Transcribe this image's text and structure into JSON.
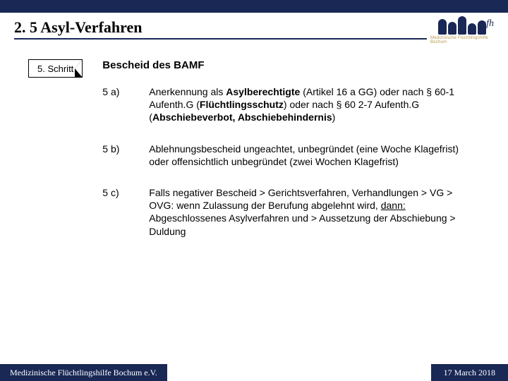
{
  "colors": {
    "brand": "#1a2855",
    "gold": "#b8974a",
    "bg": "#ffffff",
    "text": "#000000"
  },
  "title": "2. 5 Asyl-Verfahren",
  "logo": {
    "mfh": "mfh",
    "subtitle": "Medizinische Flüchtlingshilfe Bochum"
  },
  "step": {
    "label": "5. Schritt"
  },
  "heading": "Bescheid des BAMF",
  "items": [
    {
      "label": "5 a)",
      "html": "Anerkennung als <b>Asylberechtigte</b> (Artikel 16 a GG) oder nach § 60-1 Aufenth.G (<b>Flüchtlingsschutz</b>) oder nach § 60 2-7 Aufenth.G (<b>Abschiebeverbot, Abschiebehindernis</b>)"
    },
    {
      "label": "5 b)",
      "html": "Ablehnungsbescheid ungeachtet, unbegründet (eine Woche Klagefrist) oder offensichtlich unbegründet (zwei Wochen Klagefrist)"
    },
    {
      "label": "5 c)",
      "html": " Falls negativer Bescheid > Gerichtsverfahren, Verhandlungen > VG > OVG: wenn Zulassung der Berufung abgelehnt wird, <span class=\"u\">dann:</span> Abgeschlossenes Asylverfahren und > Aussetzung der Abschiebung > Duldung"
    }
  ],
  "footer": {
    "left": "Medizinische Flüchtlingshilfe Bochum e.V.",
    "right": "17 March 2018"
  }
}
